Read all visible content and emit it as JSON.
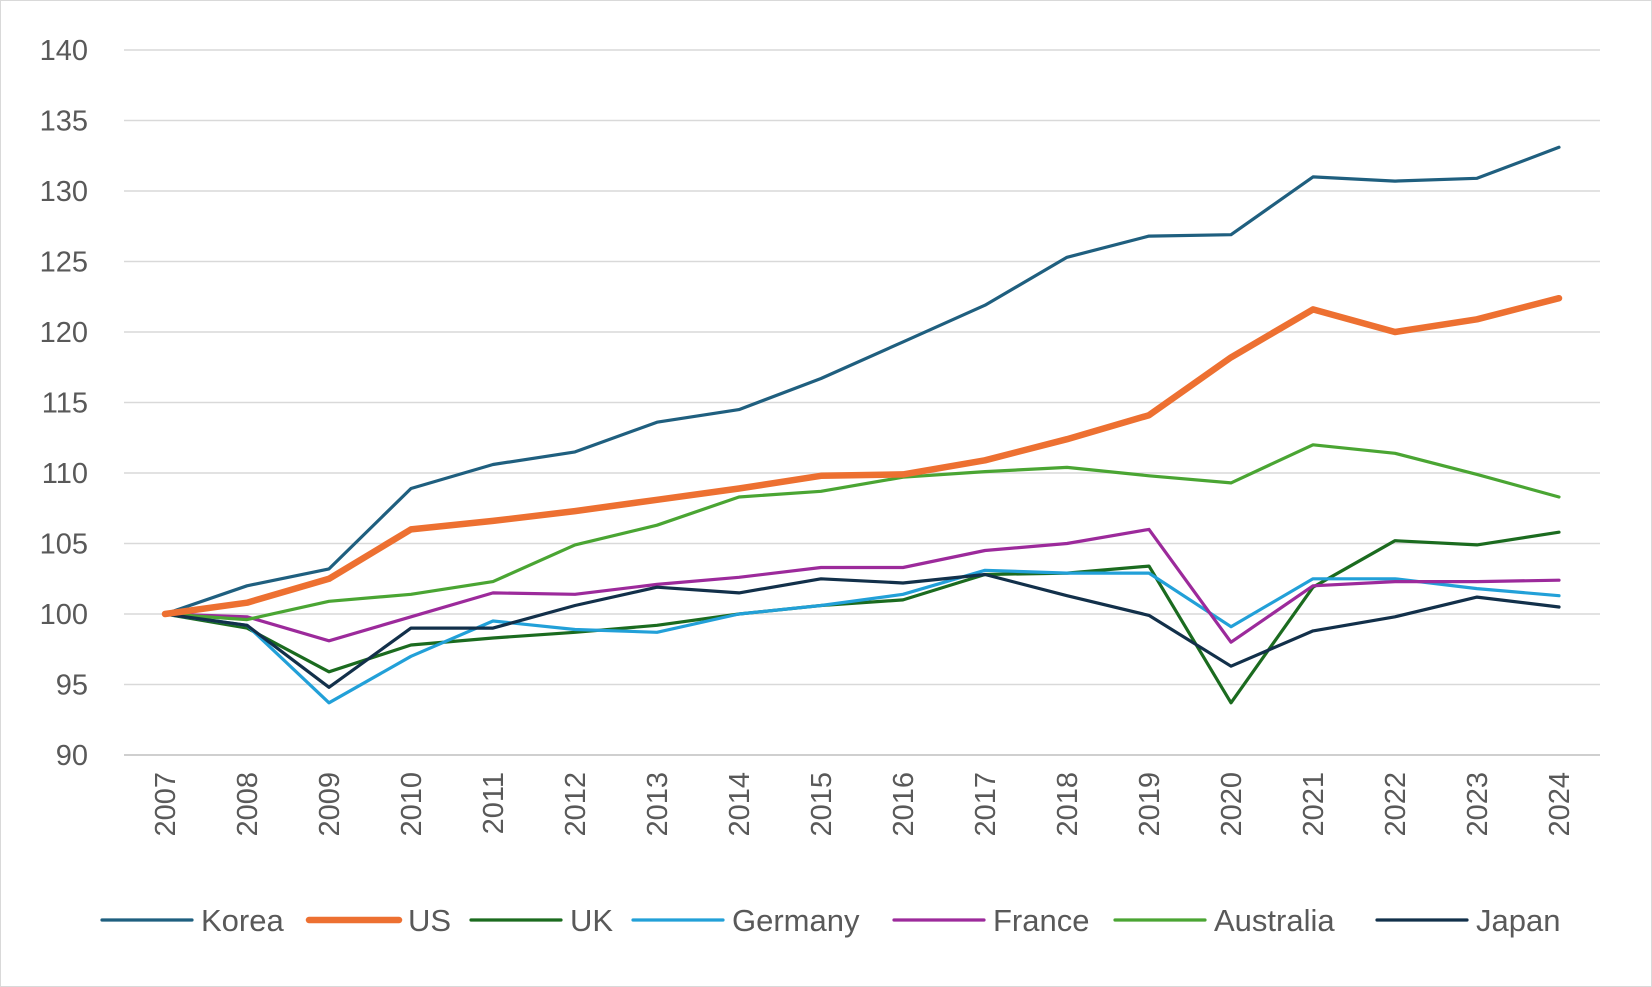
{
  "chart_data": {
    "type": "line",
    "title": "",
    "xlabel": "",
    "ylabel": "",
    "ylim": [
      90,
      140
    ],
    "yticks": [
      90,
      95,
      100,
      105,
      110,
      115,
      120,
      125,
      130,
      135,
      140
    ],
    "ytick_labels": [
      "90",
      "95",
      "100",
      "105",
      "110",
      "115",
      "120",
      "125",
      "130",
      "135",
      "140"
    ],
    "categories": [
      "2007",
      "2008",
      "2009",
      "2010",
      "2011",
      "2012",
      "2013",
      "2014",
      "2015",
      "2016",
      "2017",
      "2018",
      "2019",
      "2020",
      "2021",
      "2022",
      "2023",
      "2024"
    ],
    "grid": "horizontal",
    "legend_position": "bottom",
    "series": [
      {
        "name": "Korea",
        "color": "#1f5f7f",
        "width": 3.2,
        "values": [
          100.0,
          102.0,
          103.2,
          108.9,
          110.6,
          111.5,
          113.6,
          114.5,
          116.7,
          119.3,
          121.9,
          125.3,
          126.8,
          126.9,
          131.0,
          130.7,
          130.9,
          133.1
        ]
      },
      {
        "name": "US",
        "color": "#ed7031",
        "width": 6.5,
        "values": [
          100.0,
          100.8,
          102.5,
          106.0,
          106.6,
          107.3,
          108.1,
          108.9,
          109.8,
          109.9,
          110.9,
          112.4,
          114.1,
          118.2,
          121.6,
          120.0,
          120.9,
          122.4
        ]
      },
      {
        "name": "UK",
        "color": "#1b6b1f",
        "width": 3.2,
        "values": [
          100.0,
          99.0,
          95.9,
          97.8,
          98.3,
          98.7,
          99.2,
          100.0,
          100.6,
          101.0,
          102.8,
          102.9,
          103.4,
          93.7,
          101.9,
          105.2,
          104.9,
          105.8
        ]
      },
      {
        "name": "Germany",
        "color": "#22a0d8",
        "width": 3.2,
        "values": [
          100.0,
          99.2,
          93.7,
          97.0,
          99.5,
          98.9,
          98.7,
          100.0,
          100.6,
          101.4,
          103.1,
          102.9,
          102.9,
          99.1,
          102.5,
          102.5,
          101.8,
          101.3
        ]
      },
      {
        "name": "France",
        "color": "#9c2a9b",
        "width": 3.2,
        "values": [
          100.0,
          99.8,
          98.1,
          99.8,
          101.5,
          101.4,
          102.1,
          102.6,
          103.3,
          103.3,
          104.5,
          105.0,
          106.0,
          98.0,
          102.0,
          102.3,
          102.3,
          102.4
        ]
      },
      {
        "name": "Australia",
        "color": "#4aa533",
        "width": 3.2,
        "values": [
          100.0,
          99.6,
          100.9,
          101.4,
          102.3,
          104.9,
          106.3,
          108.3,
          108.7,
          109.7,
          110.1,
          110.4,
          109.8,
          109.3,
          112.0,
          111.4,
          109.9,
          108.3
        ]
      },
      {
        "name": "Japan",
        "color": "#12304a",
        "width": 3.2,
        "values": [
          100.0,
          99.2,
          94.8,
          99.0,
          99.0,
          100.6,
          101.9,
          101.5,
          102.5,
          102.2,
          102.8,
          101.3,
          99.9,
          96.3,
          98.8,
          99.8,
          101.2,
          100.5
        ]
      }
    ]
  }
}
